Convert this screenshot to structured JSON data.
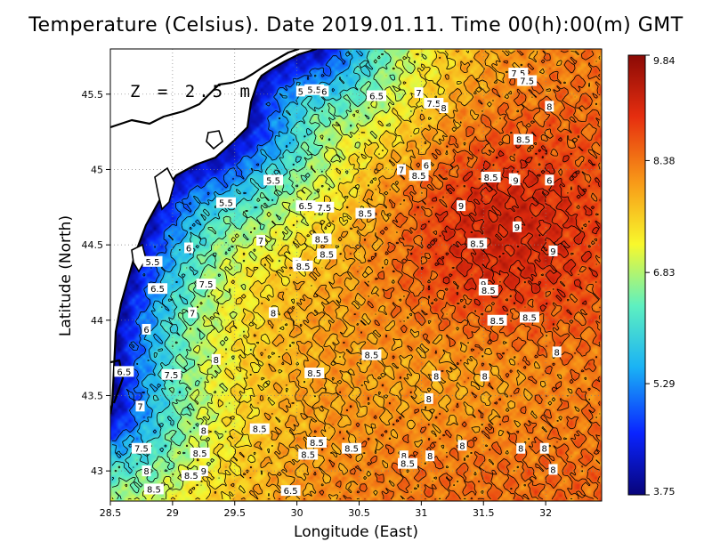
{
  "title": "Temperature (Celsius). Date 2019.01.11. Time 00(h):00(m) GMT",
  "xlabel": "Longitude (East)",
  "ylabel": "Latitude (North)",
  "depth_label": "Z = 2.5 m",
  "x_ticks": [
    "28.5",
    "29",
    "29.5",
    "30",
    "30.5",
    "31",
    "31.5",
    "32"
  ],
  "y_ticks": [
    "43",
    "43.5",
    "44",
    "44.5",
    "45",
    "45.5"
  ],
  "colorbar_ticks": [
    "9.84",
    "8.38",
    "6.83",
    "5.29",
    "3.75"
  ],
  "contour_labels": [
    {
      "text": "7.5",
      "lon": 31.78,
      "lat": 45.64
    },
    {
      "text": "7.5",
      "lon": 31.85,
      "lat": 45.59
    },
    {
      "text": "5.5",
      "lon": 30.14,
      "lat": 45.53
    },
    {
      "text": "5",
      "lon": 30.03,
      "lat": 45.52
    },
    {
      "text": "6",
      "lon": 30.22,
      "lat": 45.52
    },
    {
      "text": "6.5",
      "lon": 30.64,
      "lat": 45.49
    },
    {
      "text": "7",
      "lon": 30.98,
      "lat": 45.51
    },
    {
      "text": "7.5",
      "lon": 31.1,
      "lat": 45.44
    },
    {
      "text": "8",
      "lon": 31.18,
      "lat": 45.41
    },
    {
      "text": "8",
      "lon": 32.03,
      "lat": 45.42
    },
    {
      "text": "8.5",
      "lon": 31.82,
      "lat": 45.2
    },
    {
      "text": "6",
      "lon": 31.04,
      "lat": 45.03
    },
    {
      "text": "7",
      "lon": 30.84,
      "lat": 45.0
    },
    {
      "text": "8.5",
      "lon": 30.98,
      "lat": 44.96
    },
    {
      "text": "8.5",
      "lon": 31.56,
      "lat": 44.95
    },
    {
      "text": "8",
      "lon": 31.74,
      "lat": 44.94
    },
    {
      "text": "9",
      "lon": 31.76,
      "lat": 44.93
    },
    {
      "text": "6",
      "lon": 32.03,
      "lat": 44.93
    },
    {
      "text": "5.5",
      "lon": 29.81,
      "lat": 44.93
    },
    {
      "text": "5.5",
      "lon": 29.43,
      "lat": 44.78
    },
    {
      "text": "6.5",
      "lon": 30.07,
      "lat": 44.76
    },
    {
      "text": "7.5",
      "lon": 30.22,
      "lat": 44.75
    },
    {
      "text": "9",
      "lon": 31.32,
      "lat": 44.76
    },
    {
      "text": "8.5",
      "lon": 30.55,
      "lat": 44.71
    },
    {
      "text": "9",
      "lon": 31.77,
      "lat": 44.62
    },
    {
      "text": "7",
      "lon": 29.71,
      "lat": 44.53
    },
    {
      "text": "8.5",
      "lon": 30.2,
      "lat": 44.54
    },
    {
      "text": "8.5",
      "lon": 31.45,
      "lat": 44.51
    },
    {
      "text": "9",
      "lon": 32.06,
      "lat": 44.46
    },
    {
      "text": "6",
      "lon": 29.13,
      "lat": 44.48
    },
    {
      "text": "8.5",
      "lon": 30.24,
      "lat": 44.44
    },
    {
      "text": "8",
      "lon": 30.0,
      "lat": 44.38
    },
    {
      "text": "8.5",
      "lon": 30.05,
      "lat": 44.36
    },
    {
      "text": "5.5",
      "lon": 28.84,
      "lat": 44.39
    },
    {
      "text": "9",
      "lon": 31.5,
      "lat": 44.24
    },
    {
      "text": "8.5",
      "lon": 31.54,
      "lat": 44.2
    },
    {
      "text": "6.5",
      "lon": 28.88,
      "lat": 44.21
    },
    {
      "text": "7.5",
      "lon": 29.27,
      "lat": 44.24
    },
    {
      "text": "7",
      "lon": 29.16,
      "lat": 44.05
    },
    {
      "text": "8",
      "lon": 29.81,
      "lat": 44.05
    },
    {
      "text": "8.5",
      "lon": 31.61,
      "lat": 44.0
    },
    {
      "text": "8.5",
      "lon": 31.87,
      "lat": 44.02
    },
    {
      "text": "6",
      "lon": 28.79,
      "lat": 43.94
    },
    {
      "text": "8.5",
      "lon": 30.6,
      "lat": 43.77
    },
    {
      "text": "8",
      "lon": 32.09,
      "lat": 43.79
    },
    {
      "text": "8",
      "lon": 29.35,
      "lat": 43.74
    },
    {
      "text": "6.5",
      "lon": 28.61,
      "lat": 43.66
    },
    {
      "text": "7.5",
      "lon": 28.99,
      "lat": 43.64
    },
    {
      "text": "8.5",
      "lon": 30.14,
      "lat": 43.65
    },
    {
      "text": "8",
      "lon": 31.12,
      "lat": 43.63
    },
    {
      "text": "8",
      "lon": 31.51,
      "lat": 43.63
    },
    {
      "text": "8",
      "lon": 31.06,
      "lat": 43.48
    },
    {
      "text": "7",
      "lon": 28.74,
      "lat": 43.43
    },
    {
      "text": "8.5",
      "lon": 29.7,
      "lat": 43.28
    },
    {
      "text": "8",
      "lon": 29.25,
      "lat": 43.27
    },
    {
      "text": "8.5",
      "lon": 30.16,
      "lat": 43.19
    },
    {
      "text": "8.5",
      "lon": 30.44,
      "lat": 43.15
    },
    {
      "text": "8",
      "lon": 31.33,
      "lat": 43.17
    },
    {
      "text": "8",
      "lon": 31.8,
      "lat": 43.15
    },
    {
      "text": "8",
      "lon": 31.99,
      "lat": 43.15
    },
    {
      "text": "7.5",
      "lon": 28.75,
      "lat": 43.15
    },
    {
      "text": "8.5",
      "lon": 29.22,
      "lat": 43.12
    },
    {
      "text": "8.5",
      "lon": 30.09,
      "lat": 43.11
    },
    {
      "text": "8",
      "lon": 30.86,
      "lat": 43.1
    },
    {
      "text": "8",
      "lon": 31.07,
      "lat": 43.1
    },
    {
      "text": "8.5",
      "lon": 30.89,
      "lat": 43.05
    },
    {
      "text": "8",
      "lon": 28.79,
      "lat": 43.0
    },
    {
      "text": "9",
      "lon": 29.25,
      "lat": 43.0
    },
    {
      "text": "8.5",
      "lon": 29.15,
      "lat": 42.97
    },
    {
      "text": "8",
      "lon": 32.06,
      "lat": 43.01
    },
    {
      "text": "8.5",
      "lon": 28.85,
      "lat": 42.88
    },
    {
      "text": "6.5",
      "lon": 29.95,
      "lat": 42.87
    }
  ],
  "colors": {
    "land": "#ffffff",
    "coast": "#000000",
    "grid": "#808080"
  },
  "chart_data": {
    "type": "heatmap",
    "title": "Temperature (Celsius). Date 2019.01.11. Time 00(h):00(m) GMT",
    "xlabel": "Longitude (East)",
    "ylabel": "Latitude (North)",
    "xlim": [
      28.5,
      32.45
    ],
    "ylim": [
      42.8,
      45.8
    ],
    "colorbar": {
      "min": 3.75,
      "max": 9.84,
      "ticks": [
        9.84,
        8.38,
        6.83,
        5.29,
        3.75
      ]
    },
    "colormap": [
      "#08047a",
      "#0a24ff",
      "#1ab2f5",
      "#5ef0c0",
      "#f8f82c",
      "#f89a18",
      "#e62e0f",
      "#8b0a06"
    ],
    "contour_levels": [
      5,
      5.5,
      6,
      6.5,
      7,
      7.5,
      8,
      8.5,
      9
    ],
    "grid": true,
    "z": "2.5 m"
  }
}
